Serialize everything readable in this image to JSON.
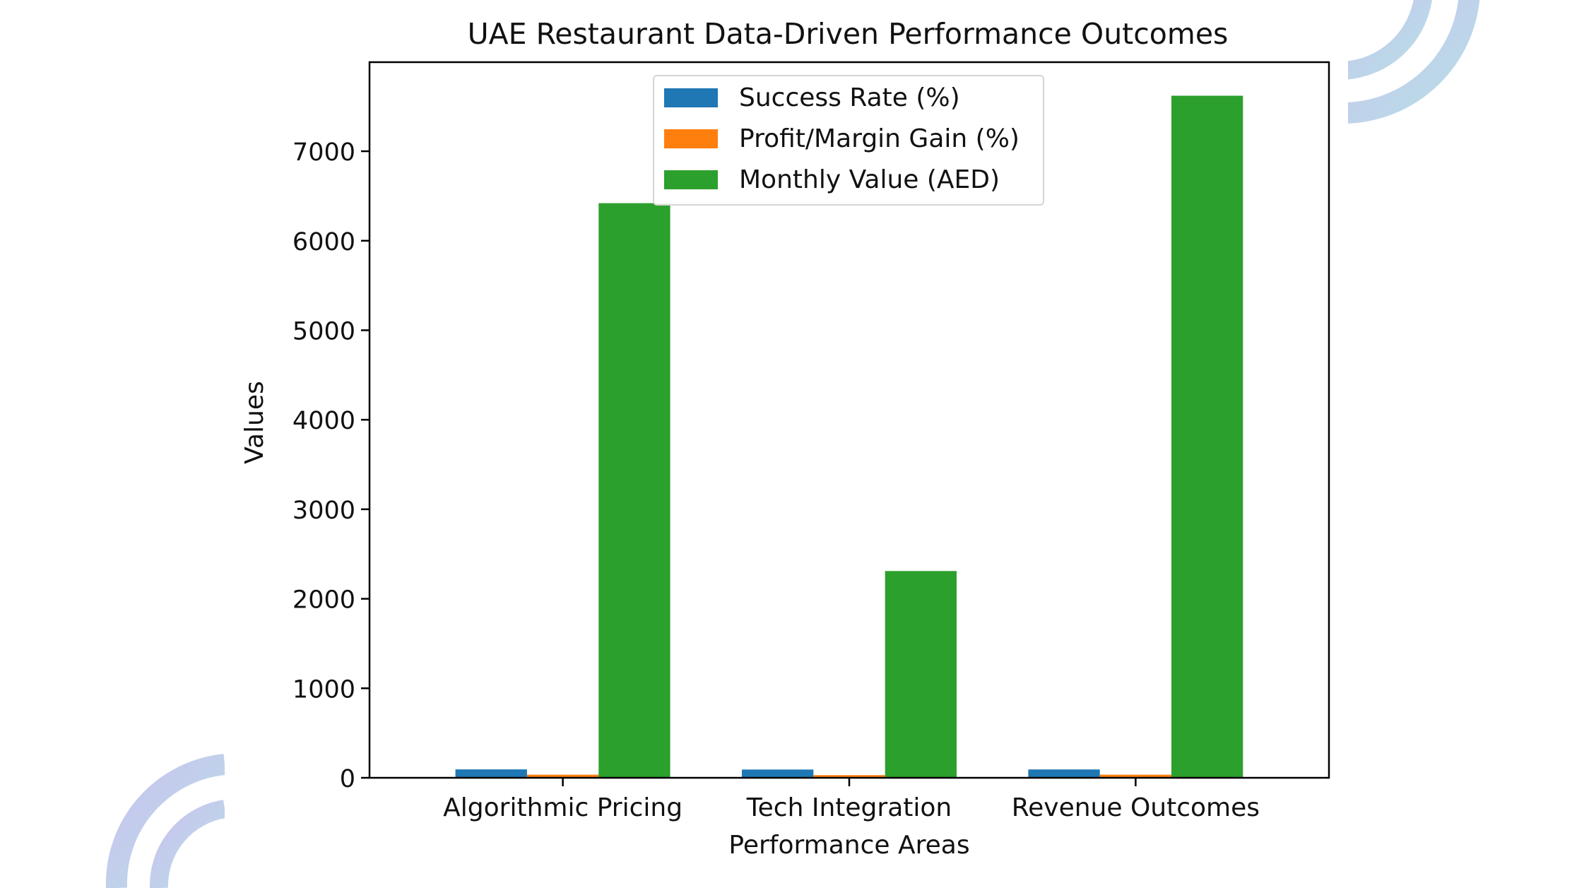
{
  "chart_data": {
    "type": "bar",
    "title": "UAE Restaurant Data-Driven Performance Outcomes",
    "xlabel": "Performance Areas",
    "ylabel": "Values",
    "categories": [
      "Algorithmic Pricing",
      "Tech Integration",
      "Revenue Outcomes"
    ],
    "series": [
      {
        "name": "Success Rate (%)",
        "color": "#1f77b4",
        "values": [
          94,
          92,
          93
        ]
      },
      {
        "name": "Profit/Margin Gain (%)",
        "color": "#ff7f0e",
        "values": [
          35,
          30,
          35
        ]
      },
      {
        "name": "Monthly Value (AED)",
        "color": "#2ca02c",
        "values": [
          6420,
          2310,
          7620
        ]
      }
    ],
    "ylim": [
      0,
      7995
    ],
    "yticks": [
      0,
      1000,
      2000,
      3000,
      4000,
      5000,
      6000,
      7000
    ],
    "grid": false,
    "legend_position": "upper-center"
  },
  "decor": {
    "accent_colors": [
      "#c9c3ef",
      "#b7dfe6"
    ]
  }
}
